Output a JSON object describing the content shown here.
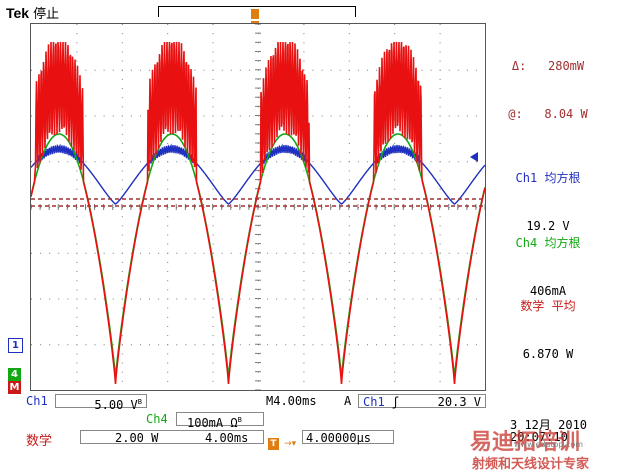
{
  "header": {
    "brand": "Tek",
    "run_state": "停止"
  },
  "readouts": {
    "cursor_delta": "Δ:   280mW",
    "cursor_at": "@:   8.04 W",
    "m1_title": "Ch1 均方根",
    "m1_value": "19.2 V",
    "m2_title": "Ch4 均方根",
    "m2_value": "406mA",
    "m3_title": "数学 平均",
    "m3_value": "6.870 W"
  },
  "channel_markers": {
    "ch1": "1",
    "ch4": "4",
    "math": "M"
  },
  "bottom": {
    "ch1_label": "Ch1",
    "ch1_scale": "5.00 V",
    "bw_symbol": "B",
    "timebase_label": "M",
    "timebase": "4.00ms",
    "trigger_mode": "A",
    "trigger_source": "Ch1",
    "trigger_slope": "ʃ",
    "trigger_level": "20.3 V",
    "ch4_label": "Ch4",
    "ch4_scale": "100mA Ω",
    "math_label": "数学",
    "math_scale": "2.00 W",
    "math_time": "4.00ms",
    "trig_pos_marker": "T",
    "trig_pos": "4.00000μs",
    "date": "3 12月 2010",
    "time": "20:07:10",
    "watermark_1": "易迪拓培训",
    "watermark_2": "射频和天线设计专家",
    "watermark_3": "www.edatop.com"
  },
  "colors": {
    "ch1": "#1f2fbf",
    "ch4": "#13a813",
    "math": "#c81a1a",
    "math_trace": "#e81010",
    "cursor": "#a03030",
    "readout_title": "#1f2fbf"
  }
}
